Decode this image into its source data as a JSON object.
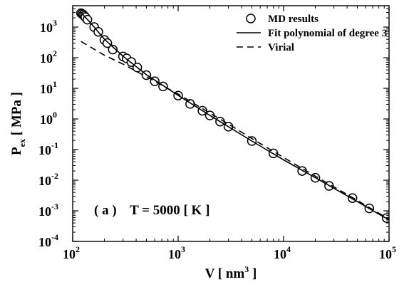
{
  "chart_data": {
    "type": "scatter",
    "panel_label": "( a )",
    "annotation": "T = 5000 [ K ]",
    "xlabel": {
      "main": "V [ nm",
      "sup": "3",
      "tail": " ]"
    },
    "ylabel": {
      "main": "P",
      "sub": "ex",
      "tail": " [ MPa ]"
    },
    "x_scale": "log",
    "y_scale": "log",
    "xlim": [
      100,
      100000
    ],
    "ylim": [
      0.0001,
      5000
    ],
    "x_ticks": [
      {
        "value": 100,
        "base": "10",
        "exp": "2"
      },
      {
        "value": 1000,
        "base": "10",
        "exp": "3"
      },
      {
        "value": 10000,
        "base": "10",
        "exp": "4"
      },
      {
        "value": 100000,
        "base": "10",
        "exp": "5"
      }
    ],
    "y_ticks": [
      {
        "value": 0.0001,
        "base": "10",
        "exp": "-4"
      },
      {
        "value": 0.001,
        "base": "10",
        "exp": "-3"
      },
      {
        "value": 0.01,
        "base": "10",
        "exp": "-2"
      },
      {
        "value": 0.1,
        "base": "10",
        "exp": "-1"
      },
      {
        "value": 1,
        "base": "10",
        "exp": "0"
      },
      {
        "value": 10,
        "base": "10",
        "exp": "1"
      },
      {
        "value": 100,
        "base": "10",
        "exp": "2"
      },
      {
        "value": 1000,
        "base": "10",
        "exp": "3"
      }
    ],
    "legend": {
      "position": "top-right",
      "entries": [
        {
          "label": "MD results",
          "marker": "circle"
        },
        {
          "label": "Fit polynomial of degree 3",
          "line": "solid"
        },
        {
          "label": "Virial",
          "line": "dashed"
        }
      ]
    },
    "series": [
      {
        "name": "MD results",
        "kind": "markers",
        "points": [
          [
            120,
            2850
          ],
          [
            123,
            2700
          ],
          [
            126,
            2520
          ],
          [
            129,
            2300
          ],
          [
            132,
            2100
          ],
          [
            138,
            1750
          ],
          [
            160,
            1000
          ],
          [
            175,
            700
          ],
          [
            200,
            380
          ],
          [
            213,
            300
          ],
          [
            240,
            185
          ],
          [
            300,
            110
          ],
          [
            325,
            95
          ],
          [
            360,
            72
          ],
          [
            410,
            48
          ],
          [
            500,
            27
          ],
          [
            600,
            17
          ],
          [
            720,
            11.5
          ],
          [
            1000,
            5.8
          ],
          [
            1300,
            3.1
          ],
          [
            1700,
            1.85
          ],
          [
            2000,
            1.3
          ],
          [
            2500,
            0.82
          ],
          [
            3000,
            0.56
          ],
          [
            5000,
            0.19
          ],
          [
            8000,
            0.075
          ],
          [
            15000,
            0.02
          ],
          [
            20000,
            0.012
          ],
          [
            27000,
            0.0065
          ],
          [
            45000,
            0.0026
          ],
          [
            65000,
            0.0012
          ],
          [
            95000,
            0.00058
          ]
        ]
      },
      {
        "name": "Fit polynomial of degree 3",
        "kind": "line",
        "style": "solid",
        "points": [
          [
            118,
            3200
          ],
          [
            130,
            2200
          ],
          [
            150,
            1300
          ],
          [
            200,
            400
          ],
          [
            300,
            112
          ],
          [
            500,
            28
          ],
          [
            1000,
            5.9
          ],
          [
            2000,
            1.3
          ],
          [
            3000,
            0.56
          ],
          [
            5000,
            0.19
          ],
          [
            10000,
            0.046
          ],
          [
            20000,
            0.012
          ],
          [
            50000,
            0.002
          ],
          [
            100000,
            0.0005
          ]
        ]
      },
      {
        "name": "Virial",
        "kind": "line",
        "style": "dashed",
        "points": [
          [
            120,
            340
          ],
          [
            200,
            120
          ],
          [
            300,
            62
          ],
          [
            500,
            24
          ],
          [
            1000,
            6.5
          ],
          [
            2000,
            1.55
          ],
          [
            3000,
            0.68
          ],
          [
            5000,
            0.23
          ],
          [
            10000,
            0.055
          ],
          [
            20000,
            0.0135
          ],
          [
            50000,
            0.0022
          ],
          [
            100000,
            0.00053
          ]
        ]
      }
    ]
  }
}
